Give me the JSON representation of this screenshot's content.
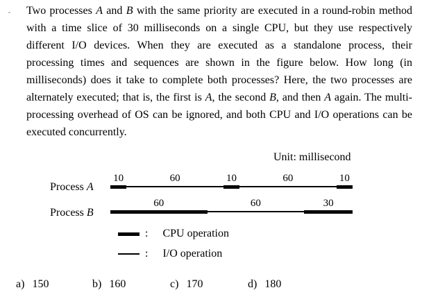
{
  "question": {
    "runs": [
      {
        "text": "Two processes ",
        "italic": false
      },
      {
        "text": "A",
        "italic": true
      },
      {
        "text": " and ",
        "italic": false
      },
      {
        "text": "B",
        "italic": true
      },
      {
        "text": " with the same priority are executed in a round-robin method with a time slice of 30 milliseconds on a single CPU, but they use respectively different I/O devices. When they are executed as a standalone process, their processing times and sequences are shown in the figure below.  How long (in milliseconds) does it take to complete both processes?  Here, the two processes are alternately executed; that is, the first is ",
        "italic": false
      },
      {
        "text": "A",
        "italic": true
      },
      {
        "text": ", the second ",
        "italic": false
      },
      {
        "text": "B",
        "italic": true
      },
      {
        "text": ", and then ",
        "italic": false
      },
      {
        "text": "A",
        "italic": true
      },
      {
        "text": " again.  The multi-processing overhead of OS can be ignored, and both CPU and I/O operations can be executed concurrently.",
        "italic": false
      }
    ]
  },
  "figure": {
    "unit_label": "Unit: millisecond",
    "time_unit": "millisecond",
    "total_ms_per_process": 150,
    "processes": [
      {
        "label_prefix": "Process ",
        "label_letter": "A",
        "segments": [
          {
            "value": 10,
            "type": "cpu"
          },
          {
            "value": 60,
            "type": "io"
          },
          {
            "value": 10,
            "type": "cpu"
          },
          {
            "value": 60,
            "type": "io"
          },
          {
            "value": 10,
            "type": "cpu"
          }
        ]
      },
      {
        "label_prefix": "Process ",
        "label_letter": "B",
        "segments": [
          {
            "value": 60,
            "type": "cpu"
          },
          {
            "value": 60,
            "type": "io"
          },
          {
            "value": 30,
            "type": "cpu"
          }
        ]
      }
    ],
    "legend": [
      {
        "type": "cpu",
        "separator": ":",
        "label": "CPU operation"
      },
      {
        "type": "io",
        "separator": ":",
        "label": "I/O operation"
      }
    ],
    "colors": {
      "bar": "#000000",
      "background": "#ffffff",
      "text": "#000000"
    }
  },
  "options": [
    {
      "letter": "a)",
      "value": "150"
    },
    {
      "letter": "b)",
      "value": "160"
    },
    {
      "letter": "c)",
      "value": "170"
    },
    {
      "letter": "d)",
      "value": "180"
    }
  ]
}
